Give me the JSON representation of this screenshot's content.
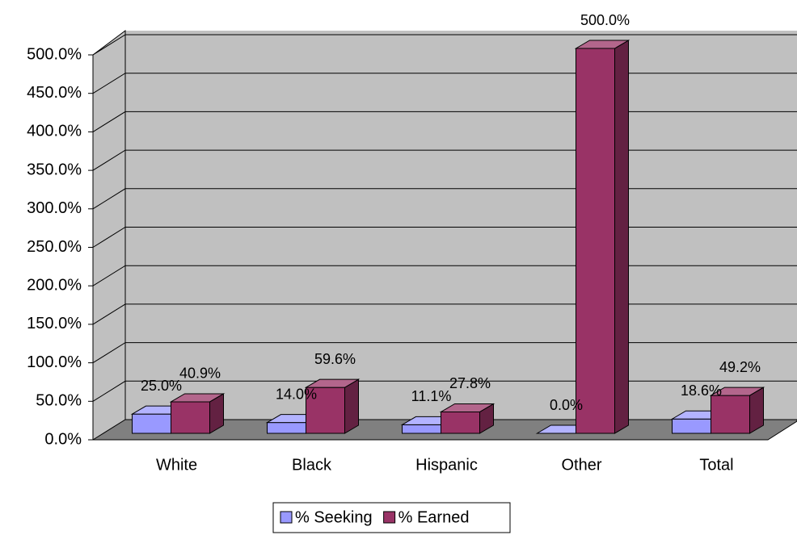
{
  "chart_data": {
    "type": "bar3d",
    "categories": [
      "White",
      "Black",
      "Hispanic",
      "Other",
      "Total"
    ],
    "series": [
      {
        "name": "% Seeking",
        "color": "#9999ff",
        "values": [
          25.0,
          14.0,
          11.1,
          0.0,
          18.6
        ],
        "value_labels": [
          "25.0%",
          "14.0%",
          "11.1%",
          "0.0%",
          "18.6%"
        ]
      },
      {
        "name": "% Earned",
        "color": "#993366",
        "values": [
          40.9,
          59.6,
          27.8,
          500.0,
          49.2
        ],
        "value_labels": [
          "40.9%",
          "59.6%",
          "27.8%",
          "500.0%",
          "49.2%"
        ]
      }
    ],
    "ylim": [
      0,
      500
    ],
    "yticks": [
      {
        "value": 0,
        "label": "0.0%"
      },
      {
        "value": 50,
        "label": "50.0%"
      },
      {
        "value": 100,
        "label": "100.0%"
      },
      {
        "value": 150,
        "label": "150.0%"
      },
      {
        "value": 200,
        "label": "200.0%"
      },
      {
        "value": 250,
        "label": "250.0%"
      },
      {
        "value": 300,
        "label": "300.0%"
      },
      {
        "value": 350,
        "label": "350.0%"
      },
      {
        "value": 400,
        "label": "400.0%"
      },
      {
        "value": 450,
        "label": "450.0%"
      },
      {
        "value": 500,
        "label": "500.0%"
      }
    ],
    "grid": true,
    "legend": "bottom"
  }
}
